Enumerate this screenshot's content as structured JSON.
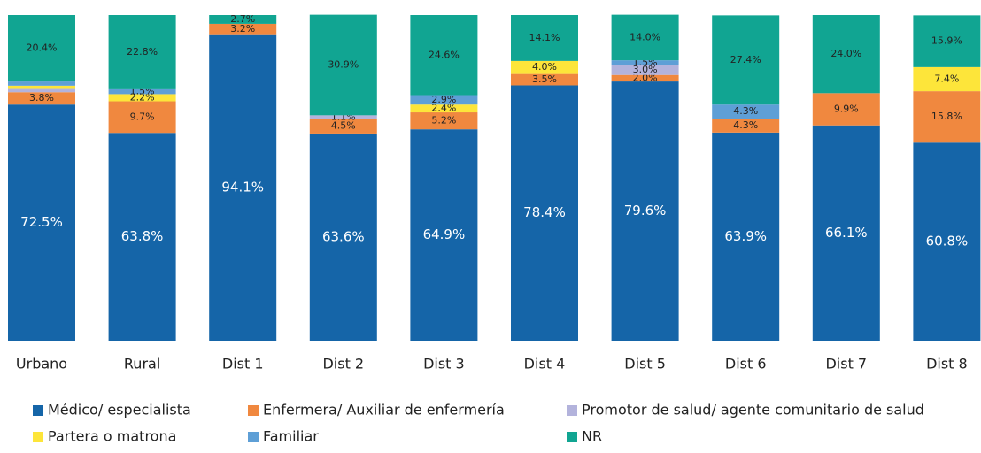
{
  "chart_data": {
    "type": "stacked_bar",
    "categories": [
      "Urbano",
      "Rural",
      "Dist 1",
      "Dist 2",
      "Dist 3",
      "Dist 4",
      "Dist 5",
      "Dist 6",
      "Dist 7",
      "Dist 8"
    ],
    "ylim": [
      0,
      100
    ],
    "legend": "bottom",
    "series": [
      {
        "name": "Médico/ especialista",
        "color": "#1565a8",
        "values": [
          72.5,
          63.8,
          94.1,
          63.6,
          64.9,
          78.4,
          79.6,
          63.9,
          66.1,
          60.8
        ],
        "value_labels": [
          "72.5%",
          "63.8%",
          "94.1%",
          "63.6%",
          "64.9%",
          "78.4%",
          "79.6%",
          "63.9%",
          "66.1%",
          "60.8%"
        ]
      },
      {
        "name": "Enfermera/ Auxiliar de enfermería",
        "color": "#f0883f",
        "values": [
          3.8,
          9.7,
          3.2,
          4.5,
          5.2,
          3.5,
          2.0,
          4.3,
          9.9,
          15.8
        ],
        "value_labels": [
          "3.8%",
          "9.7%",
          "3.2%",
          "4.5%",
          "5.2%",
          "3.5%",
          "2.0%",
          "4.3%",
          "9.9%",
          "15.8%"
        ]
      },
      {
        "name": "Promotor de salud/ agente comunitario de salud",
        "color": "#b3b3dc",
        "values": [
          1.0,
          0,
          0,
          1.1,
          0,
          0,
          3.0,
          0,
          0,
          0
        ],
        "value_labels": [
          null,
          null,
          null,
          "1.1%",
          null,
          null,
          "3.0%",
          null,
          null,
          null
        ]
      },
      {
        "name": "Partera o matrona",
        "color": "#fde53a",
        "values": [
          1.0,
          2.2,
          0,
          0,
          2.4,
          4.0,
          0,
          0,
          0,
          7.4
        ],
        "value_labels": [
          null,
          "2.2%",
          null,
          null,
          "2.4%",
          "4.0%",
          null,
          null,
          null,
          "7.4%"
        ]
      },
      {
        "name": "Familiar",
        "color": "#5e9fd6",
        "values": [
          1.3,
          1.5,
          0,
          0,
          2.9,
          0,
          1.5,
          4.3,
          0,
          0
        ],
        "value_labels": [
          null,
          "1.5%",
          null,
          null,
          "2.9%",
          null,
          "1.5%",
          "4.3%",
          null,
          null
        ]
      },
      {
        "name": "NR",
        "color": "#11a592",
        "values": [
          20.4,
          22.8,
          2.7,
          30.9,
          24.6,
          14.1,
          14.0,
          27.4,
          24.0,
          15.9
        ],
        "value_labels": [
          "20.4%",
          "22.8%",
          "2.7%",
          "30.9%",
          "24.6%",
          "14.1%",
          "14.0%",
          "27.4%",
          "24.0%",
          "15.9%"
        ]
      }
    ]
  }
}
